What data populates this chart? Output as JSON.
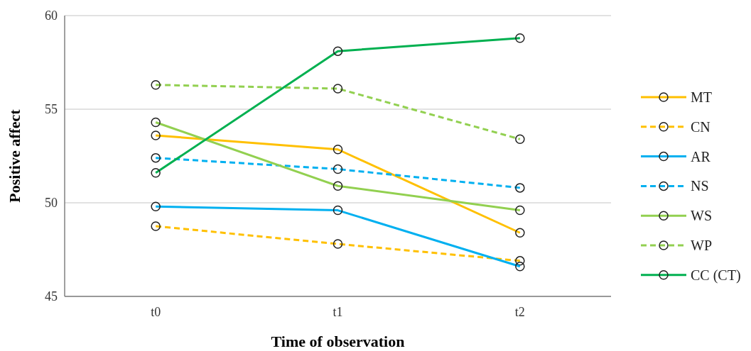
{
  "chart_data": {
    "type": "line",
    "xlabel": "Time of observation",
    "ylabel": "Positive affect",
    "categories": [
      "t0",
      "t1",
      "t2"
    ],
    "ylim": [
      45,
      60
    ],
    "yticks": [
      45,
      50,
      55,
      60
    ],
    "grid": "y",
    "legend": "right",
    "marker": "circle",
    "series": [
      {
        "name": "MT",
        "color": "#ffc000",
        "line_style": "solid",
        "values": [
          53.6,
          52.85,
          48.4
        ]
      },
      {
        "name": "CN",
        "color": "#ffc000",
        "line_style": "dashed",
        "values": [
          48.75,
          47.8,
          46.9
        ]
      },
      {
        "name": "AR",
        "color": "#00b0f0",
        "line_style": "solid",
        "values": [
          49.8,
          49.6,
          46.6
        ]
      },
      {
        "name": "NS",
        "color": "#00b0f0",
        "line_style": "dashed",
        "values": [
          52.4,
          51.8,
          50.8
        ]
      },
      {
        "name": "WS",
        "color": "#92d050",
        "line_style": "solid",
        "values": [
          54.3,
          50.9,
          49.6
        ]
      },
      {
        "name": "WP",
        "color": "#92d050",
        "line_style": "dashed",
        "values": [
          56.3,
          56.1,
          53.4
        ]
      },
      {
        "name": "CC (CT)",
        "color": "#00b050",
        "line_style": "solid",
        "values": [
          51.6,
          58.1,
          58.8
        ]
      }
    ]
  }
}
